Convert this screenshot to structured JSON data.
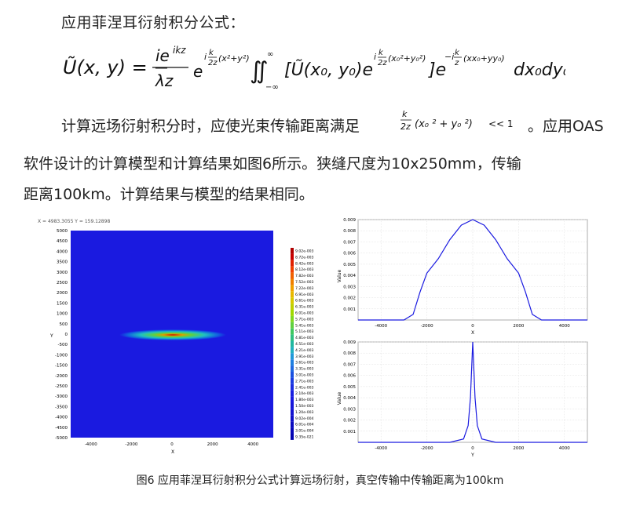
{
  "text": {
    "line1": "应用菲涅耳衍射积分公式：",
    "para2_line1_prefix": "计算远场衍射积分时，应使光束传输距离满足",
    "para2_line1_suffix": "。应用OAS",
    "para2_line2": "软件设计的计算模型和计算结果如图6所示。狭缝尺度为10x250mm，传输",
    "para2_line3": "距离100km。计算结果与模型的结果相同。",
    "inline_condition": "<< 1"
  },
  "figure": {
    "readout": "X = 4983.3055  Y = 159.12898",
    "left_axis": {
      "xlabel": "X",
      "ylabel": "Y",
      "xticks": [
        "-4000",
        "-2000",
        "0",
        "2000",
        "4000"
      ],
      "yticks": [
        "5000",
        "4500",
        "4000",
        "3500",
        "3000",
        "2500",
        "2000",
        "1500",
        "1000",
        "500",
        "0",
        "-500",
        "-1000",
        "-1500",
        "-2000",
        "-2500",
        "-3000",
        "-3500",
        "-4000",
        "-4500",
        "-5000"
      ],
      "colorbar": [
        "9.02e-003",
        "8.72e-003",
        "8.42e-003",
        "8.12e-003",
        "7.82e-003",
        "7.52e-003",
        "7.22e-003",
        "6.91e-003",
        "6.61e-003",
        "6.31e-003",
        "6.01e-003",
        "5.71e-003",
        "5.41e-003",
        "5.11e-003",
        "4.81e-003",
        "4.51e-003",
        "4.21e-003",
        "3.91e-003",
        "3.61e-003",
        "3.31e-003",
        "3.01e-003",
        "2.71e-003",
        "2.41e-003",
        "2.10e-003",
        "1.80e-003",
        "1.50e-003",
        "1.20e-003",
        "9.02e-004",
        "6.01e-004",
        "3.01e-004",
        "9.35e-021"
      ]
    },
    "right_top": {
      "xlabel": "X",
      "ylabel": "Value",
      "xticks": [
        "-4000",
        "-2000",
        "0",
        "2000",
        "4000"
      ],
      "yticks": [
        "0.009",
        "0.008",
        "0.007",
        "0.006",
        "0.005",
        "0.004",
        "0.003",
        "0.002",
        "0.001"
      ]
    },
    "right_bot": {
      "xlabel": "Y",
      "ylabel": "Value",
      "xticks": [
        "-4000",
        "-2000",
        "0",
        "2000",
        "4000"
      ],
      "yticks": [
        "0.009",
        "0.008",
        "0.007",
        "0.006",
        "0.005",
        "0.004",
        "0.003",
        "0.002",
        "0.001"
      ]
    },
    "caption": "图6  应用菲涅耳衍射积分公式计算远场衍射，真空传输中传输距离为100km"
  },
  "chart_data": [
    {
      "type": "heatmap",
      "xlabel": "X",
      "ylabel": "Y",
      "xlim": [
        -5000,
        5000
      ],
      "ylim": [
        -5000,
        5000
      ],
      "peak_value": 0.00902,
      "colorbar_range": [
        9.35e-21,
        0.00902
      ]
    },
    {
      "type": "line",
      "xlabel": "X",
      "ylabel": "Value",
      "xlim": [
        -5000,
        5000
      ],
      "ylim": [
        0,
        0.009
      ],
      "x": [
        -5000,
        -3000,
        -2600,
        -2300,
        -2000,
        -1500,
        -1000,
        -500,
        0,
        500,
        1000,
        1500,
        2000,
        2300,
        2600,
        3000,
        5000
      ],
      "values": [
        0,
        0,
        0.0005,
        0.0025,
        0.0042,
        0.0055,
        0.0072,
        0.0085,
        0.009,
        0.0085,
        0.0072,
        0.0055,
        0.0042,
        0.0025,
        0.0005,
        0,
        0
      ]
    },
    {
      "type": "line",
      "xlabel": "Y",
      "ylabel": "Value",
      "xlim": [
        -5000,
        5000
      ],
      "ylim": [
        0,
        0.009
      ],
      "x": [
        -5000,
        -1000,
        -400,
        -200,
        -100,
        0,
        100,
        200,
        400,
        1000,
        5000
      ],
      "values": [
        0,
        0,
        0.0003,
        0.0015,
        0.004,
        0.009,
        0.004,
        0.0015,
        0.0003,
        0,
        0
      ]
    }
  ]
}
